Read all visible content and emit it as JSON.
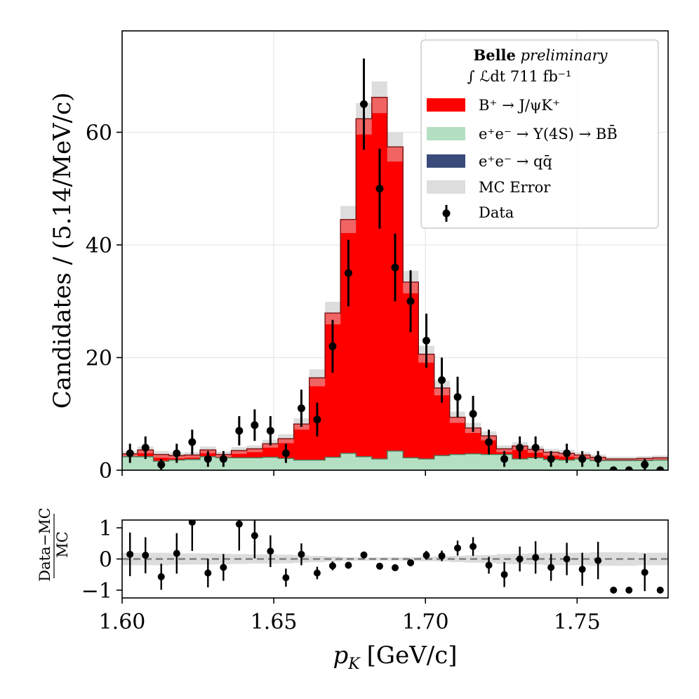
{
  "chart_data": [
    {
      "panel": "main",
      "type": "bar",
      "style": "stacked step histogram with data points",
      "ylabel": "Candidates / (5.14/MeV/c)",
      "xlim": [
        1.6,
        1.78
      ],
      "ylim": [
        0,
        78
      ],
      "yticks": [
        0,
        20,
        40,
        60
      ],
      "ytick_labels": [
        "0",
        "20",
        "40",
        "60"
      ],
      "grid": true,
      "bin_edges": [
        1.6,
        1.6051,
        1.6103,
        1.6154,
        1.6206,
        1.6257,
        1.6309,
        1.636,
        1.6411,
        1.6463,
        1.6514,
        1.6566,
        1.6617,
        1.6669,
        1.672,
        1.6771,
        1.6823,
        1.6874,
        1.6926,
        1.6977,
        1.7029,
        1.708,
        1.7131,
        1.7183,
        1.7234,
        1.7286,
        1.7337,
        1.7389,
        1.744,
        1.7491,
        1.7543,
        1.7594,
        1.7646,
        1.7697,
        1.7749,
        1.78
      ],
      "series": [
        {
          "name": "e+e- → qq̄",
          "legend": "e⁺e⁻ → qq̄",
          "color": "#3a4a7a",
          "values": [
            0,
            0,
            0,
            0,
            0,
            0,
            0,
            0,
            0,
            0,
            0,
            0,
            0,
            0,
            0,
            0,
            0,
            0,
            0,
            0,
            0,
            0,
            0,
            0,
            0,
            0,
            0,
            0,
            0,
            0,
            0,
            0,
            0,
            0,
            0
          ]
        },
        {
          "name": "e+e- → Υ(4S) → BB̄",
          "legend": "e⁺e⁻ → Υ(4S) → BB̄",
          "color": "#b5dfc2",
          "values": [
            2.4,
            2.4,
            1.6,
            1.8,
            1.9,
            2.4,
            2.2,
            2.2,
            2.2,
            2.3,
            2.1,
            1.8,
            1.8,
            2.3,
            3.0,
            2.4,
            2.0,
            3.4,
            2.2,
            2.0,
            2.6,
            2.8,
            2.9,
            2.8,
            2.8,
            2.0,
            2.2,
            1.9,
            1.8,
            2.0,
            1.7,
            1.7,
            1.7,
            1.7,
            1.8
          ]
        },
        {
          "name": "B+ → J/ψK+",
          "legend": "B⁺ → J/ψK⁺",
          "color": "#ff0000",
          "values": [
            0.5,
            1.2,
            1.2,
            0.8,
            0.8,
            1.2,
            0.6,
            1.3,
            1.6,
            2.4,
            3.5,
            6.4,
            14.6,
            25.6,
            41.5,
            60.0,
            64.2,
            54.0,
            31.2,
            18.6,
            12.0,
            6.6,
            4.6,
            3.3,
            1.0,
            2.3,
            1.5,
            1.3,
            1.2,
            0.7,
            0.6,
            0.3,
            0.3,
            0.4,
            0.4
          ]
        }
      ],
      "mc_error": {
        "name": "MC Error",
        "legend": "MC Error",
        "color": "#dddddd",
        "values": [
          0.5,
          0.6,
          0.6,
          0.5,
          0.5,
          0.6,
          0.5,
          0.6,
          0.6,
          0.7,
          0.8,
          1.0,
          1.5,
          2.0,
          2.4,
          2.8,
          2.8,
          2.6,
          2.0,
          1.5,
          1.3,
          1.0,
          0.9,
          0.8,
          0.6,
          0.7,
          0.6,
          0.6,
          0.6,
          0.5,
          0.5,
          0.4,
          0.4,
          0.4,
          0.4
        ]
      },
      "data": {
        "name": "Data",
        "legend": "Data",
        "color": "#000000",
        "x": [
          1.6026,
          1.6077,
          1.6129,
          1.618,
          1.6231,
          1.6283,
          1.6334,
          1.6386,
          1.6437,
          1.6489,
          1.654,
          1.6591,
          1.6643,
          1.6694,
          1.6746,
          1.6797,
          1.6849,
          1.69,
          1.6951,
          1.7003,
          1.7054,
          1.7106,
          1.7157,
          1.7209,
          1.726,
          1.7311,
          1.7363,
          1.7414,
          1.7466,
          1.7517,
          1.7569,
          1.762,
          1.7671,
          1.7723,
          1.7774
        ],
        "y": [
          3,
          4,
          1,
          3,
          5,
          2,
          2,
          7,
          8,
          7,
          3,
          11,
          9,
          22,
          35,
          65,
          50,
          36,
          30,
          23,
          16,
          13,
          10,
          5,
          2,
          4,
          4,
          2,
          3,
          2,
          2,
          0,
          0,
          1,
          0
        ],
        "yerr": [
          1.7,
          2.0,
          1.0,
          1.7,
          2.2,
          1.4,
          1.4,
          2.6,
          2.8,
          2.6,
          1.7,
          3.3,
          3.0,
          4.7,
          5.9,
          8.1,
          7.1,
          6.0,
          5.5,
          4.8,
          4.0,
          3.6,
          3.2,
          2.2,
          1.4,
          2.0,
          2.0,
          1.4,
          1.7,
          1.4,
          1.4,
          0,
          0,
          1.0,
          0
        ]
      },
      "legend": {
        "placement": "top-right",
        "title_bold": "Belle",
        "title_italic": "preliminary",
        "luminosity": "∫ ℒdt 711 fb⁻¹"
      }
    },
    {
      "panel": "ratio",
      "type": "scatter",
      "ylabel_top": "Data−MC",
      "ylabel_bottom": "MC",
      "xlabel": "p_K [GeV/c]",
      "xlabel_main": "p",
      "xlabel_sub": "K",
      "xlabel_unit": "[GeV/c]",
      "xlim": [
        1.6,
        1.78
      ],
      "ylim": [
        -1.25,
        1.25
      ],
      "yticks": [
        -1,
        0,
        1
      ],
      "ytick_labels": [
        "−1",
        "0",
        "1"
      ],
      "xticks": [
        1.6,
        1.65,
        1.7,
        1.75
      ],
      "xtick_labels": [
        "1.60",
        "1.65",
        "1.70",
        "1.75"
      ],
      "reference_line": 0,
      "x": [
        1.6026,
        1.6077,
        1.6129,
        1.618,
        1.6231,
        1.6283,
        1.6334,
        1.6386,
        1.6437,
        1.6489,
        1.654,
        1.6591,
        1.6643,
        1.6694,
        1.6746,
        1.6797,
        1.6849,
        1.69,
        1.6951,
        1.7003,
        1.7054,
        1.7106,
        1.7157,
        1.7209,
        1.726,
        1.7311,
        1.7363,
        1.7414,
        1.7466,
        1.7517,
        1.7569,
        1.762,
        1.7671,
        1.7723,
        1.7774
      ],
      "y": [
        0.15,
        0.12,
        -0.57,
        0.18,
        1.18,
        -0.45,
        -0.27,
        1.12,
        0.75,
        0.25,
        -0.6,
        0.15,
        -0.45,
        -0.22,
        -0.2,
        0.13,
        -0.23,
        -0.28,
        -0.12,
        0.12,
        0.1,
        0.35,
        0.4,
        -0.2,
        -0.5,
        0.0,
        0.05,
        -0.27,
        0.0,
        -0.33,
        -0.05,
        -1.0,
        -1.0,
        -0.43,
        -1.0
      ],
      "yerr": [
        0.7,
        0.58,
        0.42,
        0.65,
        0.92,
        0.46,
        0.43,
        0.85,
        0.73,
        0.51,
        0.29,
        0.35,
        0.2,
        0.14,
        0.11,
        0.1,
        0.09,
        0.09,
        0.11,
        0.14,
        0.17,
        0.24,
        0.3,
        0.27,
        0.4,
        0.4,
        0.52,
        0.43,
        0.52,
        0.53,
        0.6,
        0,
        0,
        0.6,
        0
      ],
      "band": [
        0.2,
        0.2,
        0.2,
        0.18,
        0.18,
        0.18,
        0.17,
        0.16,
        0.15,
        0.15,
        0.14,
        0.12,
        0.1,
        0.08,
        0.06,
        0.05,
        0.05,
        0.05,
        0.06,
        0.07,
        0.08,
        0.1,
        0.12,
        0.13,
        0.16,
        0.17,
        0.18,
        0.2,
        0.2,
        0.2,
        0.22,
        0.22,
        0.22,
        0.2,
        0.2
      ]
    }
  ]
}
